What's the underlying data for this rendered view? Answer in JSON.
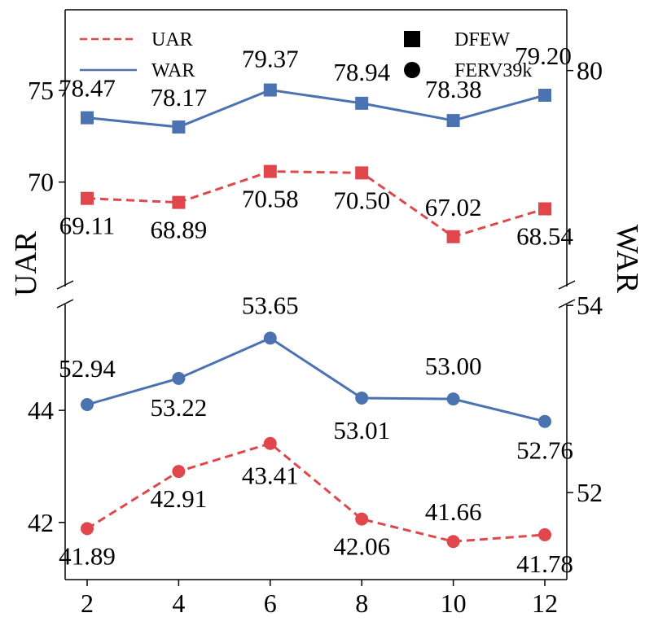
{
  "chart_data": {
    "type": "line",
    "x": [
      2,
      4,
      6,
      8,
      10,
      12
    ],
    "xticks": [
      "2",
      "4",
      "6",
      "8",
      "10",
      "12"
    ],
    "xlabel": "",
    "left_ylabel": "UAR",
    "right_ylabel": "WAR",
    "top_panel": {
      "dataset": "DFEW",
      "left_yticks": [
        "70",
        "75"
      ],
      "right_yticks": [
        "80"
      ],
      "uar_ylim": [
        64.3,
        79.4
      ],
      "war_ylim": [
        73.0,
        81.97
      ],
      "series": [
        {
          "name": "UAR",
          "axis": "left",
          "marker": "square",
          "color": "#e0474c",
          "style": "dashed",
          "values": [
            69.11,
            68.89,
            70.58,
            70.5,
            67.02,
            68.54
          ],
          "labels": [
            "69.11",
            "68.89",
            "70.58",
            "70.50",
            "67.02",
            "68.54"
          ]
        },
        {
          "name": "WAR",
          "axis": "right",
          "marker": "square",
          "color": "#4b73b2",
          "style": "solid",
          "values": [
            78.47,
            78.17,
            79.37,
            78.94,
            78.38,
            79.2
          ],
          "labels": [
            "78.47",
            "78.17",
            "79.37",
            "78.94",
            "78.38",
            "79.20"
          ]
        }
      ]
    },
    "bottom_panel": {
      "dataset": "FERV39k",
      "left_yticks": [
        "42",
        "44"
      ],
      "right_yticks": [
        "52",
        "54"
      ],
      "uar_ylim": [
        40.98,
        45.89
      ],
      "war_ylim": [
        51.07,
        54.01
      ],
      "series": [
        {
          "name": "UAR",
          "axis": "left",
          "marker": "circle",
          "color": "#e0474c",
          "style": "dashed",
          "values": [
            41.89,
            42.91,
            43.41,
            42.06,
            41.66,
            41.78
          ],
          "labels": [
            "41.89",
            "42.91",
            "43.41",
            "42.06",
            "41.66",
            "41.78"
          ]
        },
        {
          "name": "WAR",
          "axis": "right",
          "marker": "circle",
          "color": "#4b73b2",
          "style": "solid",
          "values": [
            52.94,
            53.22,
            53.65,
            53.01,
            53.0,
            52.76
          ],
          "labels": [
            "52.94",
            "53.22",
            "53.65",
            "53.01",
            "53.00",
            "52.76"
          ]
        }
      ]
    },
    "legend": {
      "placement": "top",
      "lines": [
        {
          "label": "UAR",
          "color": "#e0474c",
          "style": "dashed"
        },
        {
          "label": "WAR",
          "color": "#4b73b2",
          "style": "solid"
        }
      ],
      "markers": [
        {
          "label": "DFEW",
          "marker": "square"
        },
        {
          "label": "FERV39k",
          "marker": "circle"
        }
      ]
    },
    "grid": false
  }
}
